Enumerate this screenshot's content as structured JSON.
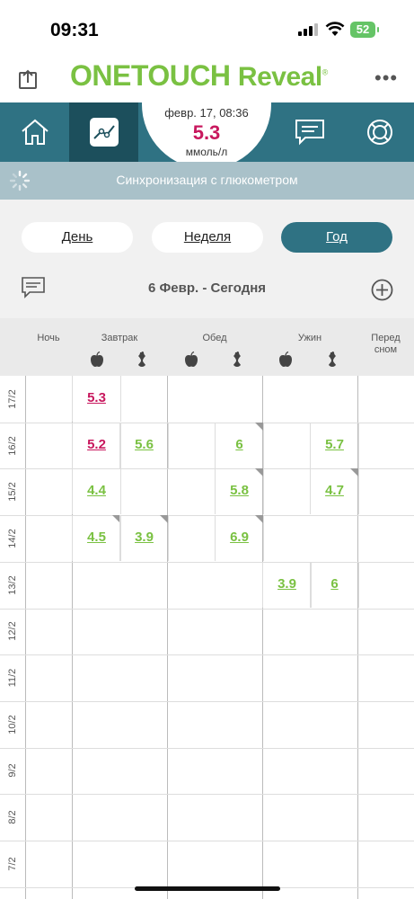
{
  "status_bar": {
    "time": "09:31",
    "battery": "52"
  },
  "app": {
    "logo_main": "ONETOUCH",
    "logo_sub": "Reveal",
    "logo_mark": "®"
  },
  "last_reading": {
    "date": "февр. 17, 08:36",
    "value": "5.3",
    "unit": "ммоль/л"
  },
  "sync_text": "Синхронизация с глюкометром",
  "segments": {
    "day": "День",
    "week": "Неделя",
    "year": "Год",
    "active": "year"
  },
  "date_range": "6 Февр. - Сегодня",
  "columns": [
    "Ночь",
    "Завтрак",
    "Обед",
    "Ужин",
    "Перед сном"
  ],
  "column_last": {
    "line1": "Перед",
    "line2": "сном"
  },
  "colors": {
    "teal": "#2f7283",
    "teal_dark": "#1c4f5c",
    "high": "#c8185e",
    "in_range": "#7ac142"
  },
  "rows": [
    {
      "date": "17/2",
      "cells": [
        {
          "col": 1,
          "value": "5.3",
          "color": "high"
        }
      ]
    },
    {
      "date": "16/2",
      "cells": [
        {
          "col": 1,
          "value": "5.2",
          "color": "high"
        },
        {
          "col": 2,
          "value": "5.6",
          "color": "in_range"
        },
        {
          "col": 4,
          "value": "6",
          "color": "in_range",
          "note": true
        },
        {
          "col": 6,
          "value": "5.7",
          "color": "in_range"
        }
      ]
    },
    {
      "date": "15/2",
      "cells": [
        {
          "col": 1,
          "value": "4.4",
          "color": "in_range"
        },
        {
          "col": 4,
          "value": "5.8",
          "color": "in_range",
          "note": true
        },
        {
          "col": 6,
          "value": "4.7",
          "color": "in_range",
          "note": true
        }
      ]
    },
    {
      "date": "14/2",
      "cells": [
        {
          "col": 1,
          "value": "4.5",
          "color": "in_range",
          "note": true
        },
        {
          "col": 2,
          "value": "3.9",
          "color": "in_range",
          "note": true
        },
        {
          "col": 4,
          "value": "6.9",
          "color": "in_range",
          "note": true
        }
      ]
    },
    {
      "date": "13/2",
      "cells": [
        {
          "col": 5,
          "value": "3.9",
          "color": "in_range"
        },
        {
          "col": 6,
          "value": "6",
          "color": "in_range"
        }
      ]
    },
    {
      "date": "12/2",
      "cells": []
    },
    {
      "date": "11/2",
      "cells": []
    },
    {
      "date": "10/2",
      "cells": []
    },
    {
      "date": "9/2",
      "cells": []
    },
    {
      "date": "8/2",
      "cells": []
    },
    {
      "date": "7/2",
      "cells": []
    }
  ]
}
